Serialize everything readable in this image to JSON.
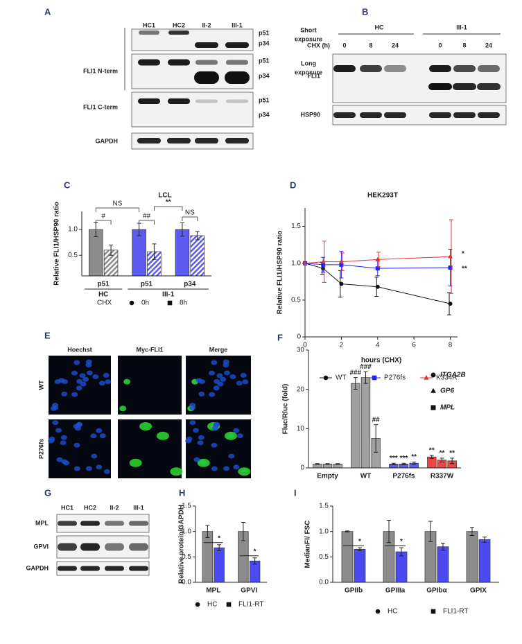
{
  "panel_a": {
    "label": "A",
    "lanes": [
      "HC1",
      "HC2",
      "II-2",
      "III-1"
    ],
    "row_labels": [
      "FLI1 N-term",
      "FLI1 C-term",
      "GAPDH"
    ],
    "band_labels": [
      "p51",
      "p34",
      "p51",
      "p34",
      "p51",
      "p34"
    ],
    "exposures": [
      [
        "Short",
        "exposure"
      ],
      [
        "Long",
        "exposure"
      ]
    ]
  },
  "panel_b": {
    "label": "B",
    "groups": [
      "HC",
      "III-1"
    ],
    "chx_label": "CHX (h)",
    "timepoints": [
      "0",
      "8",
      "24",
      "0",
      "8",
      "24"
    ],
    "row_labels": [
      "FLI1",
      "HSP90"
    ]
  },
  "panel_e": {
    "label": "E",
    "columns": [
      "Hoechst",
      "Myc-FLI1",
      "Merge"
    ],
    "rows": [
      "WT",
      "P276fs"
    ]
  },
  "panel_g": {
    "label": "G",
    "lanes": [
      "HC1",
      "HC2",
      "II-2",
      "III-1"
    ],
    "row_labels": [
      "MPL",
      "GPVI",
      "GAPDH"
    ]
  },
  "chart_data": [
    {
      "type": "bar",
      "panel": "C",
      "title": "LCL",
      "ylabel": "Relative FLI1/HSP90 ratio",
      "categories": [
        "p51",
        "p51",
        "p34"
      ],
      "group_labels": [
        "HC",
        "III-1"
      ],
      "colors": [
        "#8c8c8c",
        "#5b5bf2",
        "#5b5bf2"
      ],
      "legend_title": "CHX",
      "series": [
        {
          "name": "0h",
          "marker": "circle",
          "values": [
            1.0,
            1.0,
            1.0
          ],
          "errors": [
            0.14,
            0.12,
            0.13
          ]
        },
        {
          "name": "8h",
          "marker": "square",
          "hatch": true,
          "values": [
            0.6,
            0.57,
            0.88
          ],
          "errors": [
            0.1,
            0.15,
            0.08
          ]
        }
      ],
      "annotations": [
        "#",
        "NS",
        "##",
        "NS",
        "**"
      ],
      "ylim": [
        0.1,
        1.35
      ],
      "yticks": [
        0.5,
        {
          "value": 1,
          "label": "1.0"
        }
      ]
    },
    {
      "type": "line",
      "panel": "D",
      "title": "HEK293T",
      "xlabel": "hours (CHX)",
      "ylabel": "Relative FLI1/HSP90 ratio",
      "x": [
        0,
        1,
        2,
        4,
        8
      ],
      "series": [
        {
          "name": "WT",
          "color": "#111111",
          "marker": "circle",
          "values": [
            1.0,
            0.93,
            0.72,
            0.68,
            0.45
          ],
          "errors": [
            0,
            0.08,
            0.18,
            0.13,
            0.15
          ]
        },
        {
          "name": "P276fs",
          "color": "#2222ee",
          "marker": "square",
          "values": [
            1.0,
            0.98,
            0.98,
            0.93,
            0.94
          ],
          "errors": [
            0,
            0.1,
            0.18,
            0.1,
            0.25
          ],
          "end_label": "**"
        },
        {
          "name": "K334R",
          "color": "#e03030",
          "marker": "triangle",
          "values": [
            1.0,
            1.02,
            1.02,
            1.05,
            1.09
          ],
          "errors": [
            0,
            0.28,
            0.12,
            0.1,
            0.5
          ],
          "end_label": "*"
        }
      ],
      "xlim": [
        0,
        8.4
      ],
      "xticks": [
        0,
        2,
        4,
        6,
        8
      ],
      "ylim": [
        0,
        1.75
      ],
      "yticks": [
        0,
        0.5,
        {
          "value": 1,
          "label": "1.0"
        },
        1.5
      ]
    },
    {
      "type": "bar",
      "panel": "F",
      "ylabel": "Fluc/Rluc (fold)",
      "categories": [
        "Empty",
        "WT",
        "P276fs",
        "R337W"
      ],
      "colors": [
        "#a0a0a0",
        "#a0a0a0",
        "#5b5bf2",
        "#f04545"
      ],
      "series": [
        {
          "name": "ITGA2B",
          "marker": "circle",
          "values": [
            1,
            21.5,
            1,
            2.8
          ],
          "errors": [
            0.1,
            1.5,
            0.2,
            0.4
          ],
          "significance": [
            null,
            "###",
            "***",
            "**"
          ]
        },
        {
          "name": "GP6",
          "marker": "triangle",
          "values": [
            1,
            23,
            1,
            2
          ],
          "errors": [
            0.1,
            1.5,
            0.2,
            0.5
          ],
          "significance": [
            null,
            "###",
            "***",
            "**"
          ]
        },
        {
          "name": "MPL",
          "marker": "square",
          "values": [
            1,
            7.5,
            1.2,
            1.8
          ],
          "errors": [
            0.1,
            3.5,
            0.3,
            0.7
          ],
          "significance": [
            null,
            "##",
            "**",
            "**"
          ]
        }
      ],
      "ylim": [
        0,
        30
      ],
      "yticks": [
        0,
        10,
        20,
        30
      ]
    },
    {
      "type": "bar",
      "panel": "H",
      "ylabel": "Relative protein/GAPDH",
      "categories": [
        "MPL",
        "GPVI"
      ],
      "series": [
        {
          "name": "HC",
          "color": "#8c8c8c",
          "marker": "circle",
          "values": [
            1.0,
            1.0
          ],
          "errors": [
            0.12,
            0.18
          ]
        },
        {
          "name": "FLI1-RT",
          "color": "#4a4af0",
          "marker": "square",
          "values": [
            0.68,
            0.42
          ],
          "errors": [
            0.06,
            0.06
          ],
          "significance": [
            "*",
            "*"
          ]
        }
      ],
      "ylim": [
        0,
        1.5
      ],
      "yticks": [
        {
          "value": 0,
          "label": "0.0"
        },
        0.5,
        {
          "value": 1,
          "label": "1.0"
        },
        1.5
      ]
    },
    {
      "type": "bar",
      "panel": "I",
      "ylabel": "MedianFI/ FSC",
      "categories": [
        "GPIIb",
        "GPIIIa",
        "GPIbα",
        "GPIX"
      ],
      "series": [
        {
          "name": "HC",
          "color": "#8c8c8c",
          "marker": "circle",
          "values": [
            1.0,
            1.0,
            1.0,
            1.0
          ],
          "errors": [
            0.01,
            0.22,
            0.2,
            0.08
          ]
        },
        {
          "name": "FLI1-RT",
          "color": "#4a4af0",
          "marker": "square",
          "values": [
            0.65,
            0.6,
            0.7,
            0.84
          ],
          "errors": [
            0.03,
            0.08,
            0.07,
            0.05
          ],
          "significance": [
            "*",
            "*",
            null,
            null
          ]
        }
      ],
      "ylim": [
        0,
        1.5
      ],
      "yticks": [
        {
          "value": 0,
          "label": "0.0"
        },
        0.5,
        {
          "value": 1,
          "label": "1.0"
        },
        1.5
      ]
    }
  ]
}
